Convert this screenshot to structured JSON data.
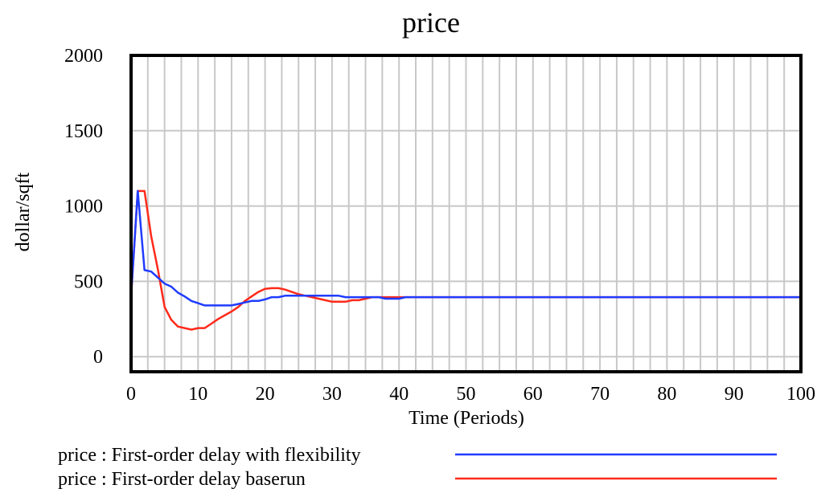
{
  "chart_data": {
    "type": "line",
    "title": "price",
    "xlabel": "Time (Periods)",
    "ylabel": "dollar/sqft",
    "xlim": [
      0,
      100
    ],
    "ylim": [
      -100,
      2000
    ],
    "xticks": [
      0,
      10,
      20,
      30,
      40,
      50,
      60,
      70,
      80,
      90,
      100
    ],
    "yticks": [
      0,
      500,
      1000,
      1500,
      2000
    ],
    "grid": true,
    "legend_position": "bottom",
    "series": [
      {
        "name": "price : First-order delay with flexibility",
        "color": "#1f3cff",
        "points": [
          [
            0,
            400
          ],
          [
            1,
            1100
          ],
          [
            2,
            575
          ],
          [
            3,
            565
          ],
          [
            4,
            525
          ],
          [
            5,
            485
          ],
          [
            6,
            465
          ],
          [
            7,
            425
          ],
          [
            8,
            400
          ],
          [
            9,
            370
          ],
          [
            10,
            355
          ],
          [
            11,
            340
          ],
          [
            12,
            340
          ],
          [
            13,
            340
          ],
          [
            14,
            340
          ],
          [
            15,
            340
          ],
          [
            16,
            350
          ],
          [
            17,
            360
          ],
          [
            18,
            370
          ],
          [
            19,
            370
          ],
          [
            20,
            380
          ],
          [
            21,
            395
          ],
          [
            22,
            395
          ],
          [
            23,
            405
          ],
          [
            24,
            405
          ],
          [
            25,
            405
          ],
          [
            26,
            405
          ],
          [
            27,
            405
          ],
          [
            28,
            405
          ],
          [
            29,
            405
          ],
          [
            30,
            405
          ],
          [
            31,
            405
          ],
          [
            32,
            395
          ],
          [
            33,
            395
          ],
          [
            34,
            395
          ],
          [
            35,
            395
          ],
          [
            36,
            395
          ],
          [
            37,
            395
          ],
          [
            38,
            385
          ],
          [
            39,
            385
          ],
          [
            40,
            385
          ],
          [
            41,
            395
          ],
          [
            50,
            395
          ],
          [
            60,
            395
          ],
          [
            70,
            395
          ],
          [
            80,
            395
          ],
          [
            90,
            395
          ],
          [
            100,
            395
          ]
        ]
      },
      {
        "name": "price : First-order delay baserun",
        "color": "#ff2a1a",
        "points": [
          [
            0,
            400
          ],
          [
            1,
            1100
          ],
          [
            2,
            1100
          ],
          [
            3,
            800
          ],
          [
            4,
            580
          ],
          [
            5,
            330
          ],
          [
            6,
            245
          ],
          [
            7,
            200
          ],
          [
            8,
            190
          ],
          [
            9,
            180
          ],
          [
            10,
            190
          ],
          [
            11,
            190
          ],
          [
            12,
            220
          ],
          [
            13,
            250
          ],
          [
            14,
            275
          ],
          [
            15,
            300
          ],
          [
            16,
            330
          ],
          [
            17,
            370
          ],
          [
            18,
            400
          ],
          [
            19,
            430
          ],
          [
            20,
            450
          ],
          [
            21,
            455
          ],
          [
            22,
            455
          ],
          [
            23,
            445
          ],
          [
            24,
            430
          ],
          [
            25,
            415
          ],
          [
            26,
            405
          ],
          [
            27,
            395
          ],
          [
            28,
            385
          ],
          [
            29,
            375
          ],
          [
            30,
            365
          ],
          [
            31,
            365
          ],
          [
            32,
            365
          ],
          [
            33,
            375
          ],
          [
            34,
            375
          ],
          [
            35,
            385
          ],
          [
            36,
            395
          ],
          [
            37,
            395
          ],
          [
            38,
            395
          ],
          [
            39,
            395
          ],
          [
            40,
            395
          ],
          [
            41,
            395
          ],
          [
            50,
            395
          ],
          [
            60,
            395
          ],
          [
            70,
            395
          ],
          [
            80,
            395
          ],
          [
            90,
            395
          ],
          [
            100,
            395
          ]
        ]
      }
    ]
  }
}
